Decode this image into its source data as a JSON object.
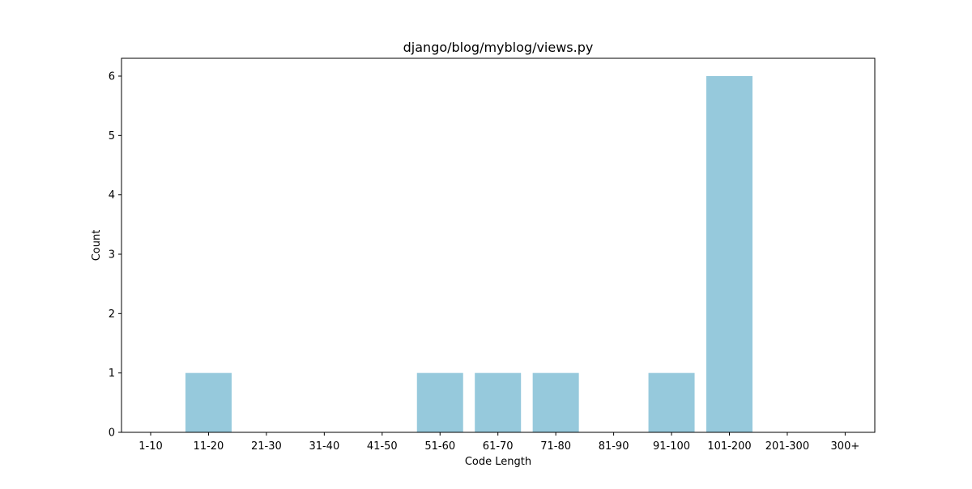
{
  "chart_data": {
    "type": "bar",
    "title": "django/blog/myblog/views.py",
    "xlabel": "Code Length",
    "ylabel": "Count",
    "categories": [
      "1-10",
      "11-20",
      "21-30",
      "31-40",
      "41-50",
      "51-60",
      "61-70",
      "71-80",
      "81-90",
      "91-100",
      "101-200",
      "201-300",
      "300+"
    ],
    "values": [
      0,
      1,
      0,
      0,
      0,
      1,
      1,
      1,
      0,
      1,
      6,
      0,
      0
    ],
    "ylim": [
      0,
      6.3
    ],
    "yticks": [
      "0",
      "1",
      "2",
      "3",
      "4",
      "5",
      "6"
    ],
    "grid": false,
    "bar_color": "#96c9dc"
  }
}
